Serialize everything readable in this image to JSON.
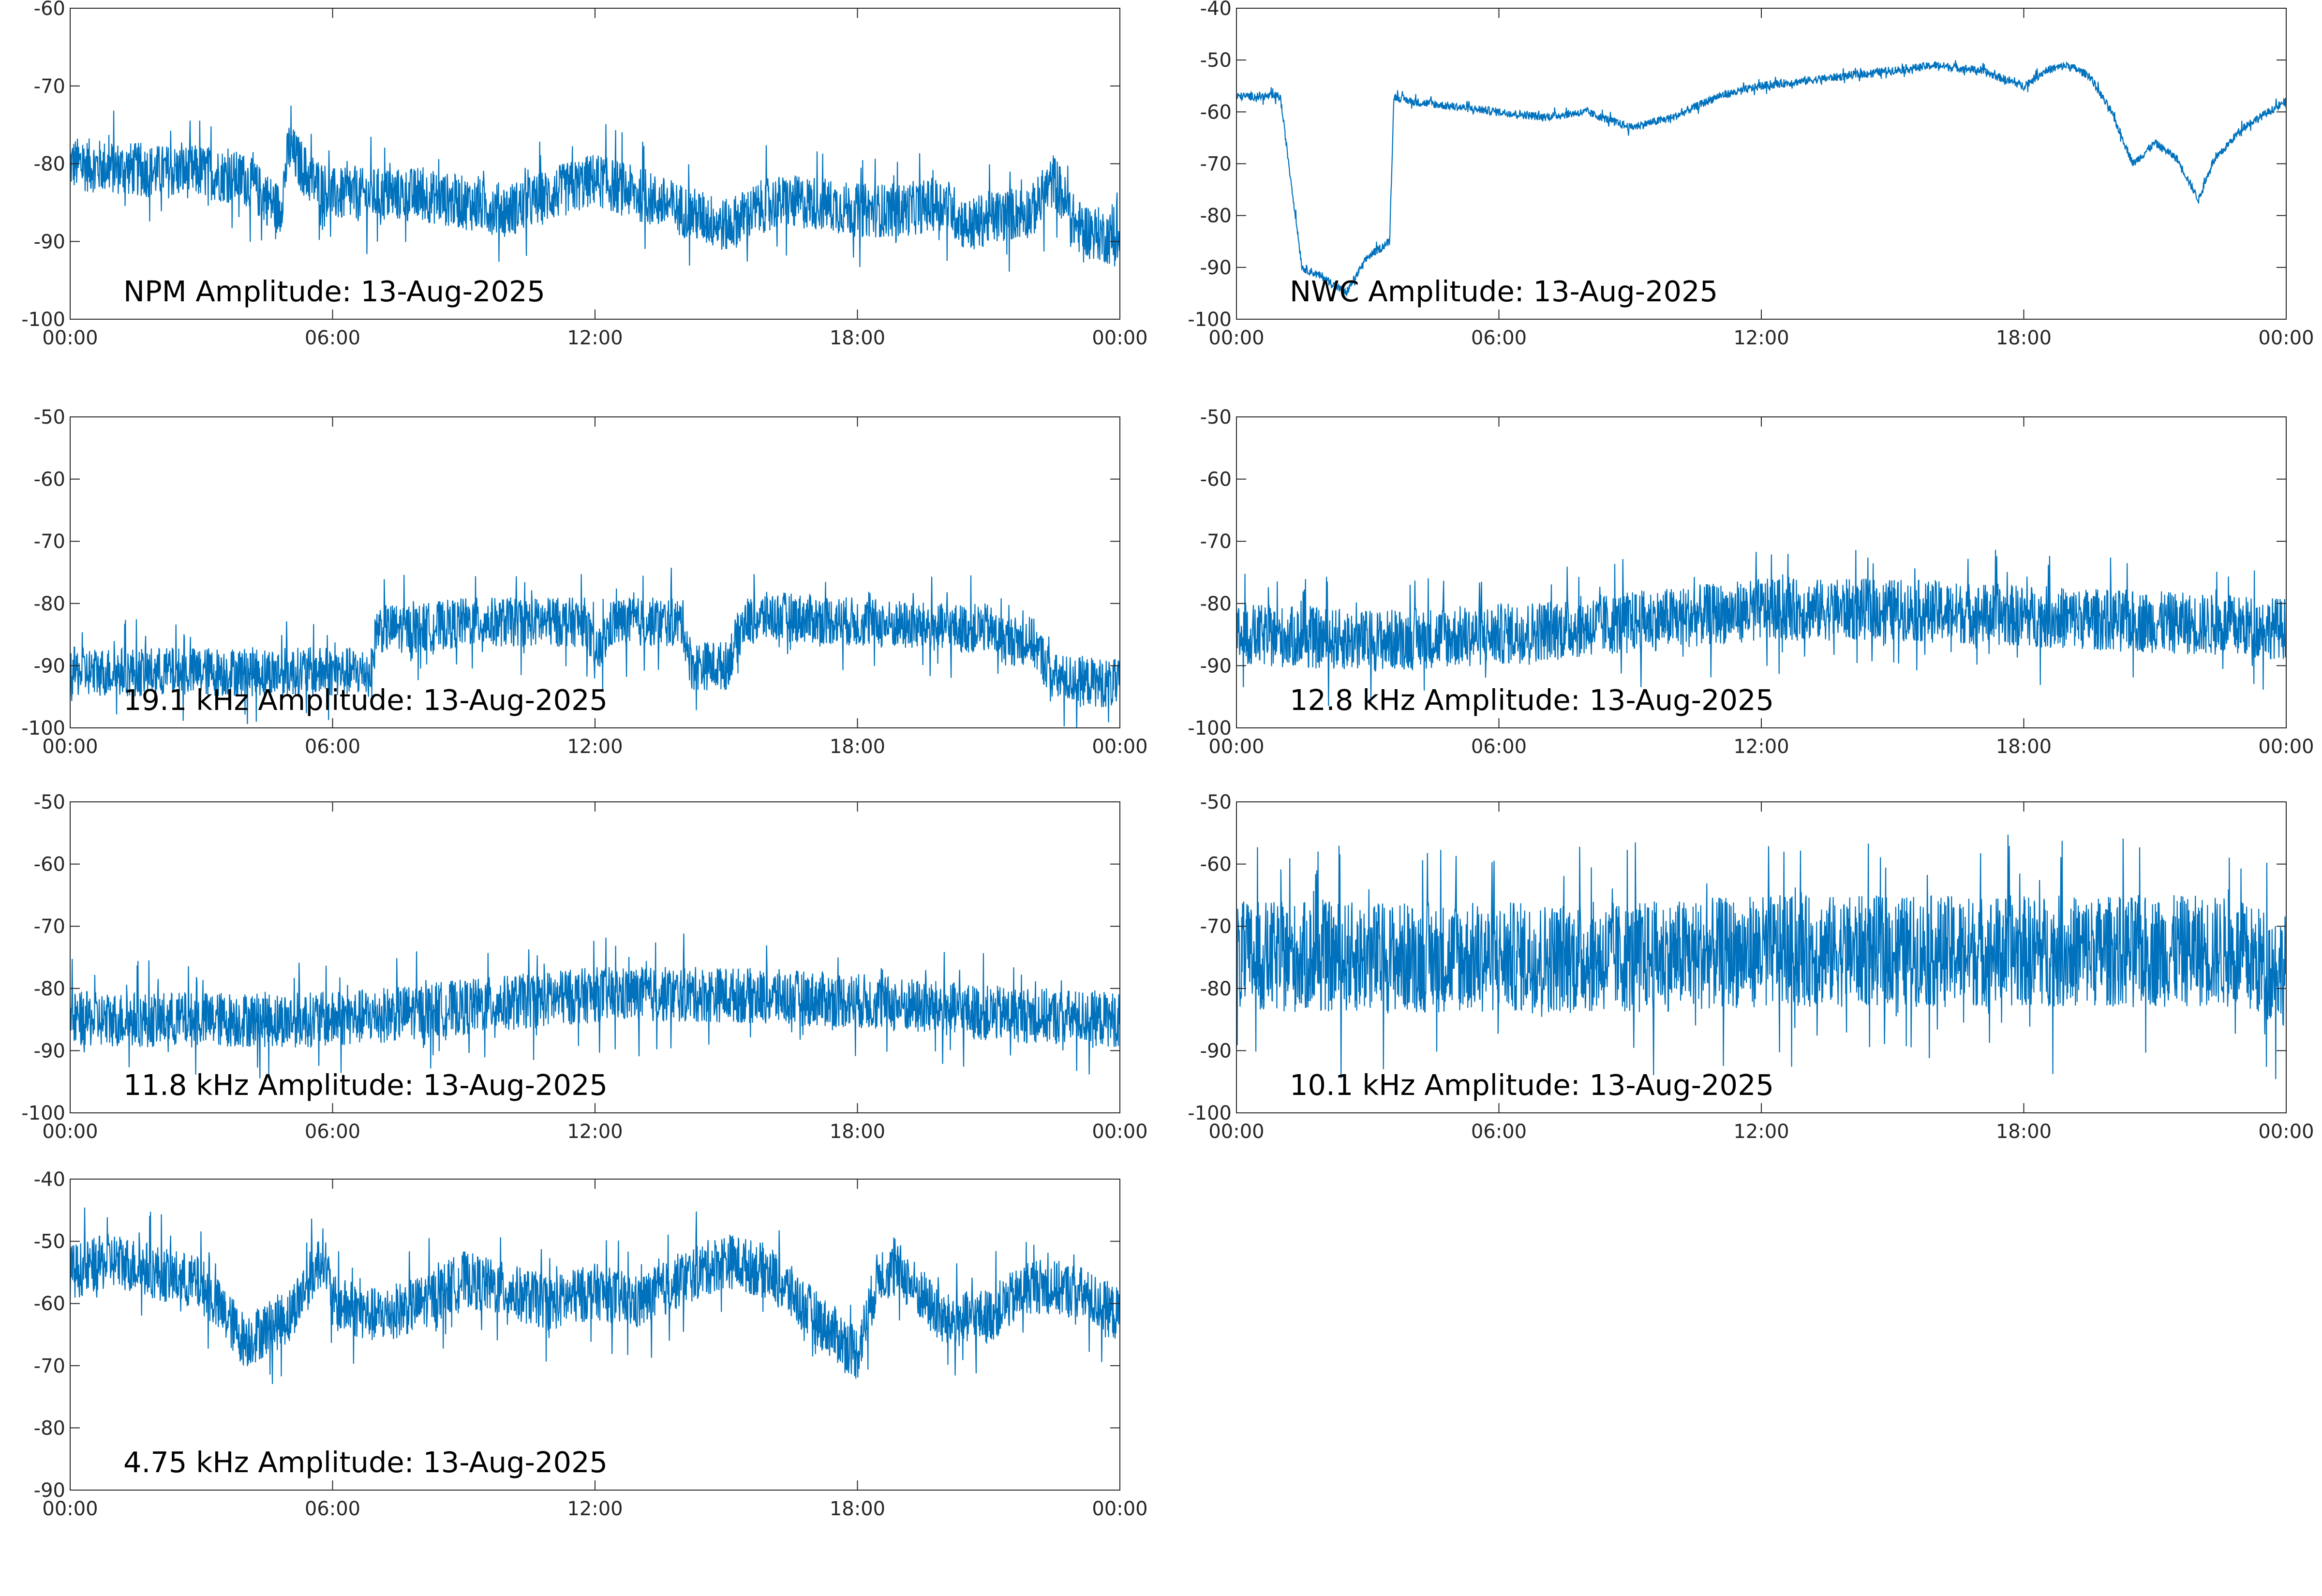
{
  "figure": {
    "line_color": "#0072bd",
    "background": "#ffffff",
    "axis_color": "#262626"
  },
  "chart_data": [
    {
      "type": "line",
      "label": "NPM Amplitude: 13-Aug-2025",
      "x_ticks": [
        "00:00",
        "06:00",
        "12:00",
        "18:00",
        "00:00"
      ],
      "xlim_hours": [
        0,
        24
      ],
      "ylim": [
        -100,
        -60
      ],
      "y_ticks": [
        -60,
        -70,
        -80,
        -90,
        -100
      ],
      "grid": false,
      "x": [
        0,
        1,
        2,
        3,
        4,
        4.8,
        5,
        5.5,
        6,
        7,
        8,
        9,
        10,
        11,
        12,
        13,
        14,
        15,
        16,
        17,
        18,
        19,
        20,
        20.5,
        21,
        22,
        22.5,
        23,
        24
      ],
      "y": [
        -80,
        -80.5,
        -81,
        -81,
        -82,
        -86,
        -78,
        -82,
        -84,
        -84,
        -84,
        -85,
        -86,
        -84,
        -82,
        -84,
        -86,
        -88,
        -85,
        -85,
        -86,
        -86,
        -85,
        -88,
        -87,
        -86,
        -82,
        -88,
        -90
      ],
      "noise_amplitude": 3.5
    },
    {
      "type": "line",
      "label": "NWC Amplitude: 13-Aug-2025",
      "x_ticks": [
        "00:00",
        "06:00",
        "12:00",
        "18:00",
        "00:00"
      ],
      "xlim_hours": [
        0,
        24
      ],
      "ylim": [
        -100,
        -40
      ],
      "y_ticks": [
        -40,
        -50,
        -60,
        -70,
        -80,
        -90,
        -100
      ],
      "grid": false,
      "x": [
        0,
        0.5,
        1,
        1.5,
        2,
        2.5,
        3,
        3.5,
        3.6,
        4,
        5,
        6,
        7,
        8,
        9,
        10,
        11,
        12,
        13,
        14,
        15,
        16,
        17,
        18,
        18.5,
        19,
        19.5,
        20,
        20.5,
        21,
        21.5,
        22,
        22.3,
        23,
        24
      ],
      "y": [
        -57,
        -57,
        -57,
        -90,
        -92,
        -95,
        -88,
        -85,
        -57,
        -58,
        -59,
        -60,
        -61,
        -60,
        -63,
        -61,
        -57,
        -55,
        -54,
        -53,
        -52,
        -51,
        -52,
        -55,
        -52,
        -51,
        -53,
        -60,
        -70,
        -66,
        -69,
        -77,
        -70,
        -63,
        -58
      ],
      "noise_amplitude": 0.8
    },
    {
      "type": "line",
      "label": "19.1 kHz Amplitude: 13-Aug-2025",
      "x_ticks": [
        "00:00",
        "06:00",
        "12:00",
        "18:00",
        "00:00"
      ],
      "xlim_hours": [
        0,
        24
      ],
      "ylim": [
        -100,
        -50
      ],
      "y_ticks": [
        -50,
        -60,
        -70,
        -80,
        -90,
        -100
      ],
      "grid": false,
      "x": [
        0,
        2,
        4,
        6,
        6.9,
        7,
        8,
        9,
        10,
        11,
        11.8,
        12,
        12.4,
        13,
        14,
        14.2,
        15,
        15.4,
        16,
        18,
        20,
        21,
        21.3,
        22,
        22.5,
        24
      ],
      "y": [
        -91,
        -91,
        -91,
        -91,
        -91,
        -84,
        -84,
        -83,
        -83,
        -83,
        -83,
        -89,
        -83,
        -83,
        -83,
        -90,
        -90,
        -83,
        -82,
        -83,
        -84,
        -84,
        -86,
        -86,
        -92,
        -93
      ],
      "noise_amplitude": 4
    },
    {
      "type": "line",
      "label": "12.8 kHz Amplitude: 13-Aug-2025",
      "x_ticks": [
        "00:00",
        "06:00",
        "12:00",
        "18:00",
        "00:00"
      ],
      "xlim_hours": [
        0,
        24
      ],
      "ylim": [
        -100,
        -50
      ],
      "y_ticks": [
        -50,
        -60,
        -70,
        -80,
        -90,
        -100
      ],
      "grid": false,
      "x": [
        0,
        3,
        6,
        9,
        12,
        15,
        18,
        21,
        24
      ],
      "y": [
        -85,
        -86,
        -85,
        -83,
        -81,
        -81,
        -82,
        -83,
        -84
      ],
      "noise_amplitude": 5
    },
    {
      "type": "line",
      "label": "11.8 kHz Amplitude: 13-Aug-2025",
      "x_ticks": [
        "00:00",
        "06:00",
        "12:00",
        "18:00",
        "00:00"
      ],
      "xlim_hours": [
        0,
        24
      ],
      "ylim": [
        -100,
        -50
      ],
      "y_ticks": [
        -50,
        -60,
        -70,
        -80,
        -90,
        -100
      ],
      "grid": false,
      "x": [
        0,
        3,
        6,
        9,
        12,
        15,
        18,
        21,
        24
      ],
      "y": [
        -85,
        -85,
        -85,
        -83,
        -81,
        -81,
        -82,
        -84,
        -85
      ],
      "noise_amplitude": 4.5
    },
    {
      "type": "line",
      "label": "10.1 kHz Amplitude: 13-Aug-2025",
      "x_ticks": [
        "00:00",
        "06:00",
        "12:00",
        "18:00",
        "00:00"
      ],
      "xlim_hours": [
        0,
        24
      ],
      "ylim": [
        -100,
        -50
      ],
      "y_ticks": [
        -50,
        -60,
        -70,
        -80,
        -90,
        -100
      ],
      "grid": false,
      "x": [
        0,
        3,
        6,
        9,
        12,
        15,
        18,
        21,
        22.5,
        24
      ],
      "y": [
        -75,
        -75,
        -75,
        -75,
        -74,
        -74,
        -74,
        -74,
        -74,
        -77
      ],
      "noise_amplitude": 9
    },
    {
      "type": "line",
      "label": "4.75 kHz Amplitude: 13-Aug-2025",
      "x_ticks": [
        "00:00",
        "06:00",
        "12:00",
        "18:00",
        "00:00"
      ],
      "xlim_hours": [
        0,
        24
      ],
      "ylim": [
        -90,
        -40
      ],
      "y_ticks": [
        -40,
        -50,
        -60,
        -70,
        -80,
        -90
      ],
      "grid": false,
      "x": [
        0,
        1,
        2,
        3,
        4,
        5,
        5.8,
        6,
        7,
        8,
        9,
        10,
        11,
        12,
        13,
        14,
        15,
        16,
        17,
        18,
        18.5,
        19,
        20,
        21,
        22,
        23,
        24
      ],
      "y": [
        -55,
        -53,
        -55,
        -57,
        -66,
        -62,
        -52,
        -60,
        -62,
        -60,
        -56,
        -58,
        -60,
        -58,
        -60,
        -56,
        -53,
        -55,
        -62,
        -68,
        -55,
        -55,
        -63,
        -62,
        -57,
        -58,
        -62
      ],
      "noise_amplitude": 4.5
    }
  ]
}
